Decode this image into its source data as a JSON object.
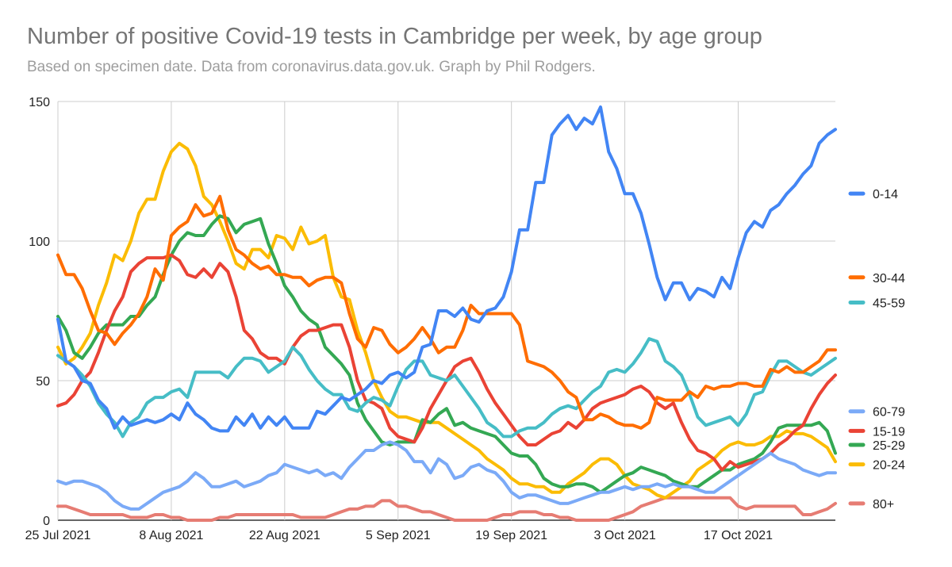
{
  "chart_data": {
    "type": "line",
    "title": "Number of positive Covid-19 tests in Cambridge per week, by age group",
    "subtitle": "Based on specimen date. Data from coronavirus.data.gov.uk. Graph by Phil Rodgers.",
    "xlabel": "",
    "ylabel": "",
    "x_start": "25 Jul 2021",
    "x_end": "29 Oct 2021",
    "n_points": 97,
    "ylim": [
      0,
      150
    ],
    "yticks": [
      0,
      50,
      100,
      150
    ],
    "x_tick_labels": [
      "25 Jul 2021",
      "8 Aug 2021",
      "22 Aug 2021",
      "5 Sep 2021",
      "19 Sep 2021",
      "3 Oct 2021",
      "17 Oct 2021"
    ],
    "x_tick_index": [
      0,
      14,
      28,
      42,
      56,
      70,
      84
    ],
    "grid": true,
    "legend_position": "right",
    "series": [
      {
        "name": "80+",
        "color": "#e67c73",
        "values": [
          5,
          5,
          4,
          3,
          2,
          2,
          2,
          2,
          2,
          1,
          1,
          1,
          2,
          2,
          1,
          1,
          0,
          0,
          0,
          0,
          1,
          1,
          2,
          2,
          2,
          2,
          2,
          2,
          2,
          2,
          1,
          1,
          1,
          1,
          2,
          3,
          4,
          4,
          5,
          5,
          7,
          7,
          5,
          5,
          4,
          3,
          3,
          2,
          1,
          0,
          0,
          0,
          0,
          0,
          1,
          2,
          2,
          3,
          3,
          3,
          2,
          2,
          1,
          1,
          0,
          0,
          0,
          0,
          0,
          1,
          2,
          3,
          5,
          6,
          7,
          8,
          8,
          8,
          8,
          8,
          8,
          8,
          8,
          8,
          5,
          4,
          5,
          5,
          5,
          5,
          5,
          5,
          2,
          2,
          3,
          4,
          6
        ]
      },
      {
        "name": "20-24",
        "color": "#fbbc04",
        "values": [
          62,
          56,
          58,
          62,
          67,
          77,
          85,
          95,
          93,
          100,
          110,
          115,
          115,
          125,
          132,
          135,
          133,
          127,
          116,
          113,
          107,
          100,
          92,
          90,
          97,
          97,
          94,
          102,
          101,
          97,
          105,
          99,
          100,
          102,
          87,
          80,
          79,
          68,
          60,
          50,
          44,
          39,
          37,
          37,
          36,
          35,
          35,
          35,
          33,
          31,
          29,
          27,
          25,
          22,
          20,
          18,
          15,
          13,
          13,
          12,
          12,
          10,
          10,
          13,
          15,
          17,
          20,
          22,
          22,
          20,
          16,
          13,
          12,
          11,
          9,
          8,
          10,
          12,
          14,
          18,
          20,
          22,
          25,
          27,
          28,
          27,
          27,
          28,
          30,
          30,
          32,
          31,
          31,
          30,
          28,
          26,
          21
        ]
      },
      {
        "name": "25-29",
        "color": "#34a853",
        "values": [
          73,
          68,
          60,
          58,
          62,
          67,
          70,
          70,
          70,
          73,
          73,
          77,
          80,
          88,
          95,
          100,
          103,
          102,
          102,
          106,
          109,
          108,
          103,
          106,
          107,
          108,
          99,
          92,
          84,
          80,
          75,
          72,
          70,
          62,
          59,
          56,
          52,
          42,
          36,
          32,
          28,
          27,
          28,
          28,
          28,
          36,
          35,
          38,
          40,
          34,
          35,
          33,
          32,
          31,
          30,
          27,
          24,
          23,
          23,
          20,
          15,
          13,
          12,
          12,
          13,
          13,
          12,
          10,
          12,
          14,
          16,
          17,
          19,
          18,
          17,
          16,
          14,
          13,
          12,
          12,
          14,
          16,
          18,
          18,
          20,
          21,
          22,
          24,
          28,
          33,
          34,
          34,
          34,
          34,
          35,
          32,
          24
        ]
      },
      {
        "name": "15-19",
        "color": "#ea4335",
        "values": [
          41,
          42,
          45,
          50,
          53,
          60,
          68,
          75,
          80,
          89,
          92,
          94,
          94,
          94,
          95,
          93,
          88,
          87,
          90,
          87,
          92,
          89,
          80,
          68,
          65,
          60,
          58,
          58,
          56,
          62,
          66,
          68,
          68,
          69,
          70,
          70,
          62,
          50,
          43,
          42,
          40,
          33,
          30,
          29,
          28,
          33,
          40,
          45,
          50,
          55,
          57,
          58,
          53,
          47,
          42,
          38,
          34,
          30,
          27,
          27,
          29,
          31,
          32,
          35,
          33,
          36,
          40,
          42,
          43,
          44,
          45,
          47,
          48,
          46,
          42,
          40,
          42,
          35,
          29,
          25,
          24,
          22,
          18,
          21,
          19,
          20,
          21,
          22,
          24,
          27,
          29,
          32,
          34,
          40,
          45,
          49,
          52
        ]
      },
      {
        "name": "60-79",
        "color": "#7baaf7",
        "values": [
          14,
          13,
          14,
          14,
          13,
          12,
          10,
          7,
          5,
          4,
          4,
          6,
          8,
          10,
          11,
          12,
          14,
          17,
          15,
          12,
          12,
          13,
          14,
          12,
          13,
          14,
          16,
          17,
          20,
          19,
          18,
          17,
          18,
          16,
          17,
          15,
          19,
          22,
          25,
          25,
          27,
          28,
          27,
          25,
          21,
          21,
          17,
          22,
          20,
          15,
          16,
          19,
          20,
          18,
          17,
          14,
          10,
          8,
          9,
          9,
          8,
          7,
          6,
          6,
          7,
          8,
          9,
          10,
          10,
          11,
          12,
          11,
          12,
          12,
          13,
          12,
          13,
          12,
          12,
          11,
          10,
          10,
          12,
          14,
          16,
          18,
          20,
          22,
          24,
          22,
          21,
          20,
          18,
          17,
          16,
          17,
          17
        ]
      },
      {
        "name": "45-59",
        "color": "#46bdc6",
        "values": [
          59,
          57,
          55,
          52,
          48,
          42,
          38,
          35,
          30,
          35,
          37,
          42,
          44,
          44,
          46,
          47,
          44,
          53,
          53,
          53,
          53,
          51,
          55,
          58,
          58,
          57,
          53,
          55,
          57,
          62,
          59,
          54,
          50,
          47,
          45,
          45,
          40,
          39,
          42,
          44,
          43,
          41,
          48,
          54,
          57,
          57,
          52,
          51,
          50,
          52,
          48,
          44,
          40,
          35,
          33,
          30,
          30,
          32,
          33,
          33,
          35,
          38,
          40,
          41,
          40,
          43,
          46,
          48,
          53,
          54,
          53,
          56,
          60,
          65,
          64,
          57,
          55,
          52,
          45,
          37,
          34,
          35,
          36,
          37,
          34,
          38,
          45,
          46,
          52,
          57,
          57,
          55,
          53,
          52,
          54,
          56,
          58
        ]
      },
      {
        "name": "30-44",
        "color": "#ff6d01",
        "values": [
          95,
          88,
          88,
          83,
          75,
          68,
          67,
          63,
          67,
          70,
          74,
          80,
          90,
          86,
          102,
          105,
          107,
          113,
          109,
          110,
          116,
          104,
          97,
          95,
          92,
          90,
          91,
          88,
          88,
          87,
          87,
          84,
          86,
          87,
          87,
          85,
          74,
          65,
          62,
          69,
          68,
          63,
          60,
          62,
          65,
          69,
          65,
          60,
          62,
          62,
          68,
          77,
          74,
          74,
          74,
          74,
          74,
          70,
          57,
          56,
          55,
          53,
          50,
          46,
          44,
          36,
          36,
          38,
          37,
          35,
          34,
          34,
          33,
          35,
          44,
          43,
          43,
          43,
          46,
          44,
          48,
          47,
          48,
          48,
          49,
          49,
          48,
          48,
          54,
          53,
          55,
          53,
          53,
          55,
          57,
          61,
          61
        ]
      },
      {
        "name": "0-14",
        "color": "#4285f4",
        "values": [
          72,
          57,
          55,
          50,
          49,
          43,
          40,
          33,
          37,
          34,
          35,
          36,
          35,
          36,
          38,
          36,
          42,
          38,
          36,
          33,
          32,
          32,
          37,
          34,
          38,
          33,
          37,
          34,
          37,
          33,
          33,
          33,
          39,
          38,
          41,
          44,
          43,
          45,
          47,
          50,
          49,
          52,
          53,
          51,
          53,
          62,
          63,
          75,
          75,
          73,
          76,
          72,
          71,
          75,
          76,
          80,
          89,
          104,
          104,
          121,
          121,
          138,
          142,
          145,
          140,
          144,
          142,
          148,
          132,
          126,
          117,
          117,
          110,
          99,
          87,
          79,
          85,
          85,
          79,
          83,
          82,
          80,
          87,
          83,
          94,
          103,
          107,
          105,
          111,
          113,
          117,
          120,
          124,
          127,
          135,
          138,
          140
        ]
      }
    ],
    "legend_entries": [
      {
        "name": "0-14",
        "color": "#4285f4"
      },
      {
        "name": "30-44",
        "color": "#ff6d01"
      },
      {
        "name": "45-59",
        "color": "#46bdc6"
      },
      {
        "name": "60-79",
        "color": "#7baaf7"
      },
      {
        "name": "15-19",
        "color": "#ea4335"
      },
      {
        "name": "25-29",
        "color": "#34a853"
      },
      {
        "name": "20-24",
        "color": "#fbbc04"
      },
      {
        "name": "80+",
        "color": "#e67c73"
      }
    ],
    "legend_anchor_value": {
      "0-14": 117,
      "30-44": 87,
      "45-59": 78,
      "60-79": 39,
      "15-19": 32,
      "25-29": 27,
      "20-24": 20,
      "80+": 6
    }
  }
}
